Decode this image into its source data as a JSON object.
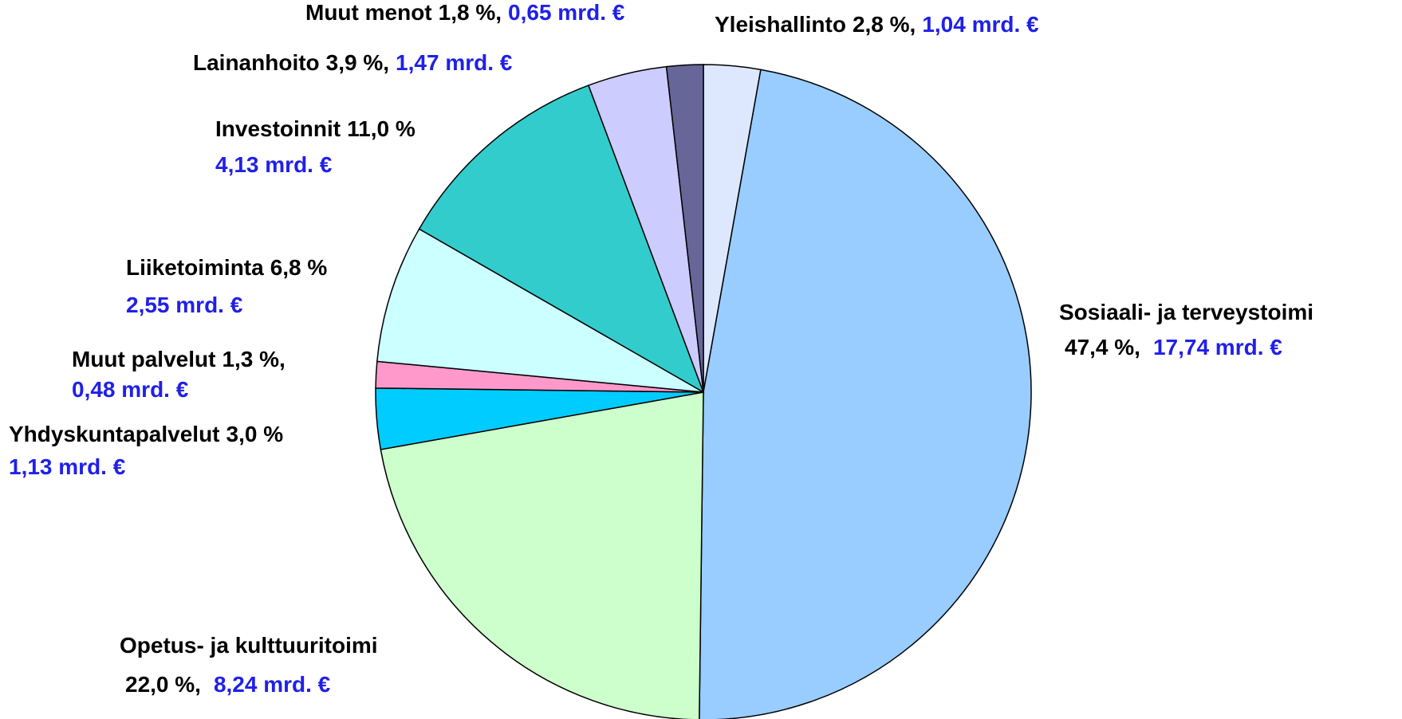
{
  "chart_data": {
    "type": "pie",
    "categories": [
      "Yleishallinto",
      "Sosiaali- ja terveystoimi",
      "Opetus- ja kulttuuritoimi",
      "Yhdyskuntapalvelut",
      "Muut palvelut",
      "Liiketoiminta",
      "Investoinnit",
      "Lainanhoito",
      "Muut menot"
    ],
    "values": [
      2.8,
      47.4,
      22.0,
      3.0,
      1.3,
      6.8,
      11.0,
      3.9,
      1.8
    ],
    "value_labels": [
      "2,8 %,",
      "47,4 %,",
      "22,0 %,",
      "3,0 %",
      "1,3 %,",
      "6,8 %",
      "11,0 %",
      "3,9 %,",
      "1,8 %,"
    ],
    "amounts": [
      1.04,
      17.74,
      8.24,
      1.13,
      0.48,
      2.55,
      4.13,
      1.47,
      0.65
    ],
    "amount_labels": [
      "1,04 mrd. €",
      "17,74 mrd. €",
      "8,24 mrd. €",
      "1,13 mrd. €",
      "0,48 mrd. €",
      "2,55 mrd. €",
      "4,13 mrd. €",
      "1,47 mrd. €",
      "0,65 mrd. €"
    ],
    "colors": [
      "#dde8ff",
      "#99ccff",
      "#ccffcc",
      "#00ccff",
      "#ff99cc",
      "#ccffff",
      "#33cccc",
      "#ccccff",
      "#666699"
    ]
  }
}
